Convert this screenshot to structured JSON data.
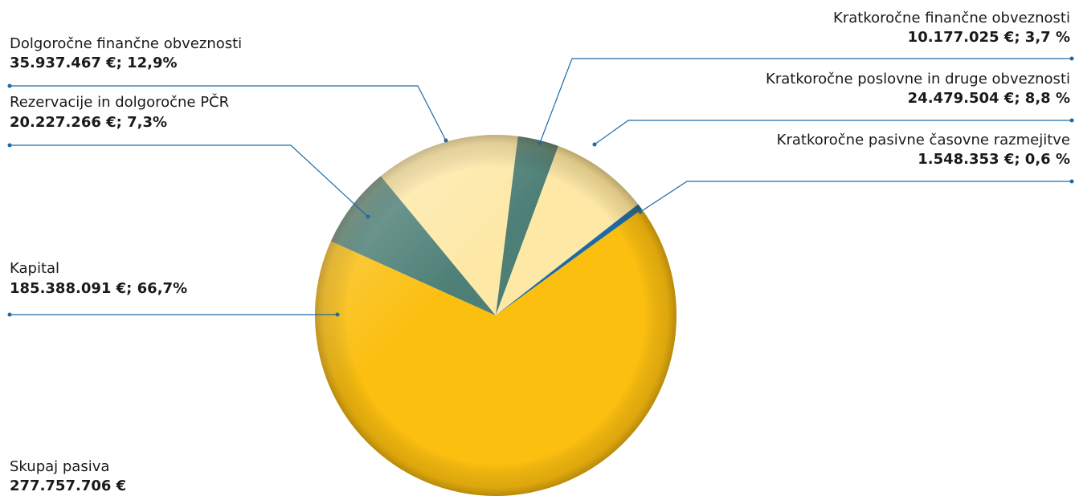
{
  "chart_data": {
    "type": "pie",
    "categories": [
      "Kapital",
      "Rezervacije in dolgoročne PČR",
      "Dolgoročne finančne obveznosti",
      "Kratkoročne finančne obveznosti",
      "Kratkoročne poslovne in druge obveznosti",
      "Kratkoročne pasivne časovne razmejitve"
    ],
    "values": [
      185388091,
      20227266,
      35937467,
      10177025,
      24479504,
      1548353
    ],
    "value_labels": [
      "185.388.091 €; 66,7%",
      "20.227.266 €; 7,3%",
      "35.937.467 €; 12,9%",
      "10.177.025 €; 3,7 %",
      "24.479.504 €; 8,8 %",
      "1.548.353 €; 0,6 %"
    ],
    "colors": [
      "#fbbf10",
      "#4d7f76",
      "#fde8a6",
      "#4d7f76",
      "#fde8a6",
      "#1d6aa5"
    ],
    "total_title": "Skupaj pasiva",
    "total_text": "277.757.706 €"
  }
}
